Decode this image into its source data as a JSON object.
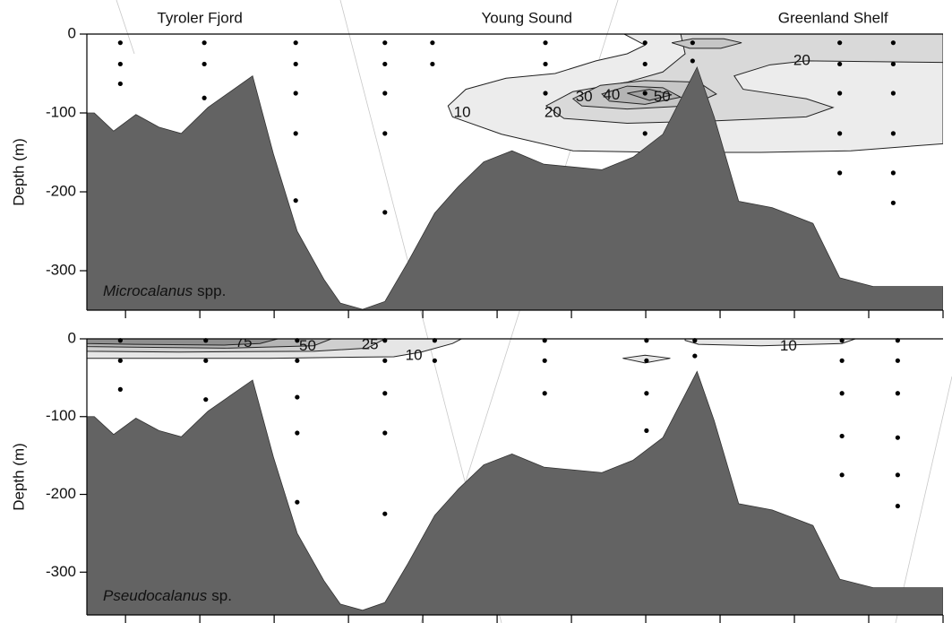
{
  "chart_data": [
    {
      "type": "section",
      "regions": [
        {
          "text": "Tyroler Fjord",
          "x": 1.0
        },
        {
          "text": "Young Sound",
          "x": 5.4
        },
        {
          "text": "Greenland Shelf",
          "x": 9.52
        }
      ],
      "label_italic": "Microcalanus",
      "label_rest": "spp.",
      "ylabel": "Depth (m)",
      "xlim": [
        -0.52,
        11
      ],
      "xticks": [
        0,
        1,
        2,
        3,
        4,
        5,
        6,
        7,
        8,
        9,
        10,
        11
      ],
      "ylim": [
        -350,
        0
      ],
      "yticks": [
        0,
        -100,
        -200,
        -300
      ],
      "bathymetry": {
        "color": "#636363",
        "x": [
          -0.52,
          -0.42,
          -0.16,
          0.14,
          0.45,
          0.75,
          1.11,
          1.71,
          1.99,
          2.31,
          2.67,
          2.89,
          3.19,
          3.49,
          3.8,
          4.16,
          4.48,
          4.82,
          5.2,
          5.63,
          6.41,
          6.83,
          7.23,
          7.69,
          7.92,
          8.25,
          8.7,
          9.25,
          9.61,
          10.06,
          11
        ],
        "depth": [
          -100,
          -100,
          -123,
          -102,
          -118,
          -126,
          -93,
          -53,
          -152,
          -250,
          -311,
          -341,
          -349,
          -339,
          -289,
          -227,
          -193,
          -162,
          -148,
          -165,
          -172,
          -156,
          -127,
          -42,
          -105,
          -212,
          -220,
          -240,
          -309,
          -320,
          -320
        ]
      },
      "contours": [
        {
          "color": "#ececec",
          "points": [
            [
              6.71,
              0
            ],
            [
              11,
              0
            ],
            [
              11,
              -139
            ],
            [
              9.76,
              -148
            ],
            [
              8.55,
              -150
            ],
            [
              7.23,
              -150
            ],
            [
              6.02,
              -148
            ],
            [
              5.06,
              -127
            ],
            [
              4.4,
              -105
            ],
            [
              4.34,
              -91
            ],
            [
              4.58,
              -70
            ],
            [
              5.12,
              -56
            ],
            [
              5.78,
              -50
            ],
            [
              6.33,
              -34
            ],
            [
              6.75,
              -25
            ],
            [
              6.99,
              -14
            ]
          ]
        },
        {
          "color": "#d9d9d9",
          "points": [
            [
              7.47,
              0
            ],
            [
              11,
              0
            ],
            [
              11,
              -36
            ],
            [
              9.16,
              -34
            ],
            [
              8.67,
              -39
            ],
            [
              8.19,
              -53
            ],
            [
              8.31,
              -70
            ],
            [
              9.16,
              -82
            ],
            [
              9.52,
              -93
            ],
            [
              9.16,
              -105
            ],
            [
              7.95,
              -110
            ],
            [
              6.75,
              -113
            ],
            [
              5.9,
              -107
            ],
            [
              5.66,
              -91
            ],
            [
              6.02,
              -73
            ],
            [
              6.75,
              -61
            ],
            [
              7.23,
              -48
            ],
            [
              7.53,
              -25
            ]
          ]
        },
        {
          "color": "#c6c6c6",
          "points": [
            [
              6.02,
              -82
            ],
            [
              6.39,
              -65
            ],
            [
              6.99,
              -59
            ],
            [
              7.71,
              -61
            ],
            [
              7.95,
              -76
            ],
            [
              7.59,
              -91
            ],
            [
              6.75,
              -95
            ],
            [
              6.14,
              -91
            ]
          ]
        },
        {
          "color": "#b4b4b4",
          "points": [
            [
              6.41,
              -76
            ],
            [
              6.75,
              -66
            ],
            [
              7.23,
              -68
            ],
            [
              7.47,
              -80
            ],
            [
              6.99,
              -89
            ],
            [
              6.51,
              -85
            ]
          ]
        },
        {
          "color": "#a2a2a2",
          "points": [
            [
              6.75,
              -75
            ],
            [
              7.05,
              -70
            ],
            [
              7.35,
              -77
            ],
            [
              7.05,
              -84
            ]
          ]
        },
        {
          "color": "#c6c6c6",
          "points": [
            [
              7.35,
              -11
            ],
            [
              7.63,
              -6
            ],
            [
              8.05,
              -6
            ],
            [
              8.29,
              -11
            ],
            [
              8.01,
              -18
            ],
            [
              7.59,
              -18
            ]
          ]
        }
      ],
      "contour_labels": [
        {
          "level": 10,
          "x": 4.53,
          "y": -100
        },
        {
          "level": 20,
          "x": 5.75,
          "y": -100
        },
        {
          "level": 30,
          "x": 6.17,
          "y": -80
        },
        {
          "level": 40,
          "x": 6.54,
          "y": -78
        },
        {
          "level": 50,
          "x": 7.22,
          "y": -80
        },
        {
          "level": 20,
          "x": 9.1,
          "y": -34
        }
      ],
      "stations": [
        {
          "x": -0.07,
          "depths": [
            -11,
            -38,
            -63
          ]
        },
        {
          "x": 1.06,
          "depths": [
            -11,
            -38,
            -81
          ]
        },
        {
          "x": 2.29,
          "depths": [
            -11,
            -38,
            -75,
            -126,
            -211
          ]
        },
        {
          "x": 3.49,
          "depths": [
            -11,
            -38,
            -75,
            -126,
            -226
          ]
        },
        {
          "x": 4.13,
          "depths": [
            -11,
            -38
          ]
        },
        {
          "x": 5.65,
          "depths": [
            -11,
            -38,
            -75
          ]
        },
        {
          "x": 6.99,
          "depths": [
            -11,
            -38,
            -75,
            -126
          ]
        },
        {
          "x": 7.63,
          "depths": [
            -11,
            -34
          ]
        },
        {
          "x": 9.61,
          "depths": [
            -11,
            -38,
            -75,
            -126,
            -176
          ]
        },
        {
          "x": 10.33,
          "depths": [
            -11,
            -38,
            -75,
            -126,
            -176,
            -214
          ]
        }
      ]
    },
    {
      "type": "section",
      "label_italic": "Pseudocalanus",
      "label_rest": "sp.",
      "ylabel": "Depth (m)",
      "xlim": [
        -0.52,
        11
      ],
      "xticks": [
        0,
        1,
        2,
        3,
        4,
        5,
        6,
        7,
        8,
        9,
        10,
        11
      ],
      "ylim": [
        -355,
        0
      ],
      "yticks": [
        0,
        -100,
        -200,
        -300
      ],
      "bathymetry": {
        "color": "#636363",
        "x": [
          -0.52,
          -0.42,
          -0.16,
          0.14,
          0.45,
          0.75,
          1.11,
          1.71,
          1.99,
          2.31,
          2.67,
          2.89,
          3.19,
          3.49,
          3.8,
          4.16,
          4.48,
          4.82,
          5.2,
          5.63,
          6.41,
          6.83,
          7.23,
          7.69,
          7.92,
          8.25,
          8.7,
          9.25,
          9.61,
          10.06,
          11
        ],
        "depth": [
          -100,
          -100,
          -123,
          -102,
          -118,
          -126,
          -93,
          -53,
          -152,
          -250,
          -311,
          -341,
          -349,
          -339,
          -289,
          -227,
          -193,
          -162,
          -148,
          -165,
          -172,
          -156,
          -127,
          -42,
          -105,
          -212,
          -220,
          -240,
          -309,
          -320,
          -320
        ]
      },
      "contours": [
        {
          "color": "#e6e6e6",
          "points": [
            [
              -0.52,
              0
            ],
            [
              4.52,
              0
            ],
            [
              4.4,
              -6
            ],
            [
              3.98,
              -17
            ],
            [
              3.61,
              -23
            ],
            [
              1.93,
              -25
            ],
            [
              -0.52,
              -25
            ]
          ]
        },
        {
          "color": "#e6e6e6",
          "points": [
            [
              7.53,
              0
            ],
            [
              9.82,
              0
            ],
            [
              9.64,
              -6
            ],
            [
              8.55,
              -9
            ],
            [
              7.71,
              -7
            ],
            [
              7.53,
              -2
            ]
          ]
        },
        {
          "color": "#cfcfcf",
          "points": [
            [
              -0.52,
              0
            ],
            [
              3.49,
              0
            ],
            [
              3.25,
              -12
            ],
            [
              2.53,
              -16
            ],
            [
              0.72,
              -17
            ],
            [
              -0.52,
              -16
            ]
          ]
        },
        {
          "color": "#b5b5b5",
          "points": [
            [
              -0.52,
              0
            ],
            [
              2.77,
              0
            ],
            [
              2.53,
              -9
            ],
            [
              1.33,
              -12
            ],
            [
              -0.52,
              -10
            ]
          ]
        },
        {
          "color": "#8f8f8f",
          "points": [
            [
              -0.52,
              0
            ],
            [
              2.05,
              0
            ],
            [
              1.81,
              -6
            ],
            [
              1.33,
              -8
            ],
            [
              0.12,
              -7
            ],
            [
              -0.52,
              -6
            ]
          ]
        },
        {
          "color": "#e6e6e6",
          "points": [
            [
              6.69,
              -25
            ],
            [
              6.99,
              -21
            ],
            [
              7.33,
              -25
            ],
            [
              6.99,
              -31
            ]
          ]
        }
      ],
      "contour_labels": [
        {
          "level": 75,
          "x": 1.59,
          "y": -5
        },
        {
          "level": 50,
          "x": 2.45,
          "y": -10
        },
        {
          "level": 25,
          "x": 3.29,
          "y": -8
        },
        {
          "level": 10,
          "x": 3.88,
          "y": -22
        },
        {
          "level": 10,
          "x": 8.92,
          "y": -10
        }
      ],
      "stations": [
        {
          "x": -0.07,
          "depths": [
            -2,
            -28,
            -65
          ]
        },
        {
          "x": 1.08,
          "depths": [
            -2,
            -28,
            -78
          ]
        },
        {
          "x": 2.31,
          "depths": [
            -2,
            -28,
            -75,
            -121,
            -210
          ]
        },
        {
          "x": 3.49,
          "depths": [
            -2,
            -28,
            -70,
            -121,
            -225
          ]
        },
        {
          "x": 4.16,
          "depths": [
            -2,
            -28
          ]
        },
        {
          "x": 5.64,
          "depths": [
            -2,
            -28,
            -70
          ]
        },
        {
          "x": 7.01,
          "depths": [
            -2,
            -28,
            -70,
            -118
          ]
        },
        {
          "x": 7.66,
          "depths": [
            -2,
            -22
          ]
        },
        {
          "x": 9.64,
          "depths": [
            -2,
            -28,
            -70,
            -125,
            -175
          ]
        },
        {
          "x": 10.39,
          "depths": [
            -2,
            -28,
            -70,
            -127,
            -175,
            -215
          ]
        }
      ]
    }
  ]
}
